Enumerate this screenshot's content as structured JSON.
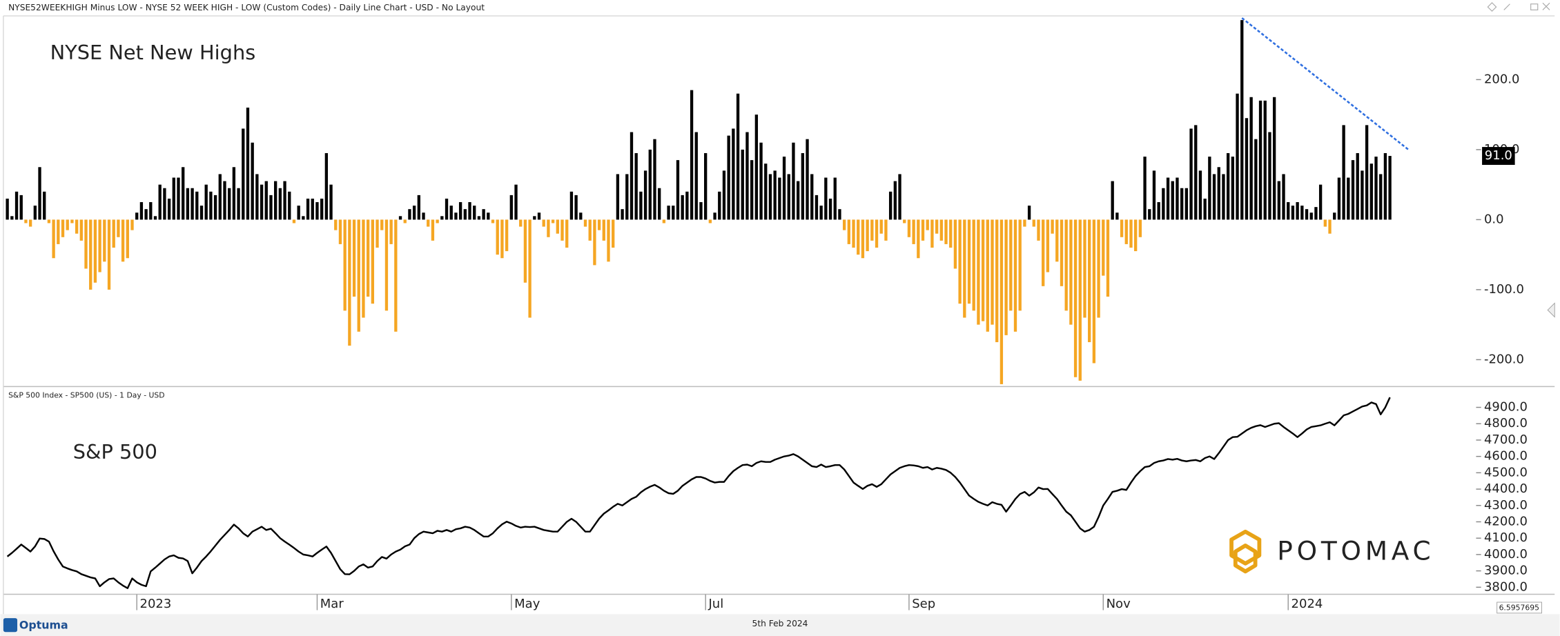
{
  "header": "NYSE52WEEKHIGH Minus LOW - NYSE 52 WEEK HIGH - LOW (Custom Codes) - Daily Line Chart - USD - No Layout",
  "chart_data": [
    {
      "type": "bar",
      "title": "NYSE Net New Highs",
      "values": [
        30,
        5,
        40,
        35,
        -5,
        -10,
        20,
        75,
        40,
        -5,
        -55,
        -35,
        -25,
        -15,
        -5,
        -20,
        -30,
        -70,
        -100,
        -90,
        -75,
        -60,
        -100,
        -40,
        -25,
        -60,
        -55,
        -15,
        10,
        25,
        15,
        25,
        5,
        50,
        45,
        30,
        60,
        60,
        75,
        45,
        45,
        40,
        20,
        50,
        40,
        35,
        65,
        55,
        45,
        75,
        45,
        130,
        160,
        110,
        65,
        50,
        55,
        35,
        55,
        45,
        55,
        40,
        -5,
        20,
        5,
        30,
        30,
        25,
        30,
        95,
        50,
        -15,
        -35,
        -130,
        -180,
        -110,
        -160,
        -140,
        -110,
        -120,
        -40,
        -15,
        -130,
        -35,
        -160,
        5,
        -5,
        15,
        20,
        35,
        10,
        -10,
        -30,
        -5,
        5,
        30,
        20,
        10,
        25,
        15,
        25,
        20,
        5,
        15,
        10,
        -5,
        -50,
        -55,
        -45,
        35,
        50,
        -10,
        -90,
        -140,
        5,
        10,
        -10,
        -25,
        -5,
        -20,
        -30,
        -40,
        40,
        35,
        10,
        -10,
        -30,
        -65,
        -15,
        -30,
        -60,
        -40,
        65,
        15,
        65,
        125,
        95,
        40,
        70,
        100,
        115,
        45,
        -5,
        20,
        20,
        85,
        35,
        40,
        185,
        125,
        25,
        95,
        -5,
        10,
        40,
        70,
        120,
        130,
        180,
        100,
        125,
        85,
        150,
        110,
        80,
        65,
        70,
        60,
        90,
        65,
        110,
        55,
        95,
        115,
        65,
        35,
        20,
        60,
        30,
        60,
        15,
        -15,
        -35,
        -40,
        -50,
        -55,
        -45,
        -30,
        -40,
        -20,
        -30,
        40,
        55,
        65,
        -5,
        -25,
        -35,
        -55,
        -30,
        -15,
        -40,
        -20,
        -30,
        -35,
        -40,
        -70,
        -120,
        -140,
        -120,
        -130,
        -150,
        -145,
        -160,
        -150,
        -175,
        -235,
        -165,
        -130,
        -160,
        -130,
        -10,
        20,
        -10,
        -30,
        -95,
        -75,
        -20,
        -60,
        -95,
        -130,
        -150,
        -225,
        -230,
        -140,
        -175,
        -205,
        -140,
        -80,
        -110,
        55,
        10,
        -25,
        -35,
        -40,
        -45,
        -25,
        90,
        15,
        70,
        25,
        45,
        60,
        55,
        60,
        45,
        45,
        130,
        135,
        70,
        30,
        90,
        65,
        75,
        65,
        95,
        90,
        180,
        285,
        145,
        175,
        115,
        170,
        170,
        125,
        175,
        55,
        65,
        25,
        20,
        25,
        20,
        15,
        10,
        18,
        50,
        -10,
        -20,
        10,
        60,
        135,
        60,
        85,
        95,
        70,
        135,
        80,
        90,
        65,
        95,
        91
      ],
      "positive_color": "#000000",
      "negative_color": "#f5a623",
      "ylim": [
        -237,
        291
      ],
      "yticks": [
        {
          "value": -200,
          "label": "-200.0"
        },
        {
          "value": -100,
          "label": "-100.0"
        },
        {
          "value": 0,
          "label": "0.0"
        },
        {
          "value": 100,
          "label": "100.0"
        },
        {
          "value": 200,
          "label": "200.0"
        }
      ],
      "last_value_label": "91.0",
      "trendline": {
        "x": [
          267,
          303
        ],
        "y": [
          288,
          100
        ],
        "color": "#2f6fe0"
      }
    },
    {
      "type": "line",
      "title": "S&P 500",
      "subtitle": "S&P 500 Index  - SP500 (US) - 1 Day - USD",
      "categories": [
        null,
        null,
        null,
        null,
        null,
        null,
        null,
        null,
        null,
        null,
        null,
        null,
        null,
        null,
        null,
        null,
        null,
        null,
        null,
        null,
        null,
        null,
        null,
        null,
        null,
        null,
        null,
        null,
        "2023",
        null,
        null,
        null,
        null,
        null,
        null,
        null,
        null,
        null,
        null,
        null,
        null,
        null,
        null,
        null,
        null,
        null,
        null,
        null,
        null,
        null,
        null,
        null,
        null,
        null,
        null,
        null,
        null,
        null,
        null,
        null,
        null,
        null,
        null,
        null,
        null,
        null,
        null,
        "Mar",
        null,
        null,
        null,
        null,
        null,
        null,
        null,
        null,
        null,
        null,
        null,
        null,
        null,
        null,
        null,
        null,
        null,
        null,
        null,
        null,
        null,
        null,
        null,
        null,
        null,
        null,
        null,
        null,
        null,
        null,
        null,
        null,
        null,
        null,
        null,
        null,
        null,
        null,
        null,
        null,
        null,
        "May",
        null,
        null,
        null,
        null,
        null,
        null,
        null,
        null,
        null,
        null,
        null,
        null,
        null,
        null,
        null,
        null,
        null,
        null,
        null,
        null,
        null,
        null,
        null,
        null,
        null,
        null,
        null,
        null,
        null,
        null,
        null,
        null,
        null,
        null,
        null,
        null,
        null,
        null,
        null,
        null,
        null,
        "Jul",
        null,
        null,
        null,
        null,
        null,
        null,
        null,
        null,
        null,
        null,
        null,
        null,
        null,
        null,
        null,
        null,
        null,
        null,
        null,
        null,
        null,
        null,
        null,
        null,
        null,
        null,
        null,
        null,
        null,
        null,
        null,
        null,
        null,
        null,
        null,
        null,
        null,
        null,
        null,
        null,
        null,
        null,
        null,
        "Sep",
        null,
        null,
        null,
        null,
        null,
        null,
        null,
        null,
        null,
        null,
        null,
        null,
        null,
        null,
        null,
        null,
        null,
        null,
        null,
        null,
        null,
        null,
        null,
        null,
        null,
        null,
        null,
        null,
        null,
        null,
        null,
        null,
        null,
        null,
        null,
        null,
        null,
        null,
        null,
        null,
        null,
        "Nov",
        null,
        null,
        null,
        null,
        null,
        null,
        null,
        null,
        null,
        null,
        null,
        null,
        null,
        null,
        null,
        null,
        null,
        null,
        null,
        null,
        null,
        null,
        null,
        null,
        null,
        null,
        null,
        null,
        null,
        null,
        null,
        null,
        null,
        null,
        null,
        null,
        null,
        null,
        null,
        "2024",
        null,
        null,
        null,
        null,
        null,
        null,
        null,
        null,
        null,
        null,
        null,
        null,
        null,
        null,
        null,
        null,
        null,
        null,
        null,
        null,
        null,
        null
      ],
      "values": [
        3988,
        4010,
        4035,
        4061,
        4040,
        4018,
        4050,
        4098,
        4095,
        4079,
        4020,
        3970,
        3927,
        3915,
        3905,
        3897,
        3880,
        3870,
        3860,
        3854,
        3806,
        3830,
        3850,
        3854,
        3830,
        3810,
        3794,
        3854,
        3830,
        3815,
        3806,
        3897,
        3920,
        3945,
        3970,
        3988,
        3995,
        3980,
        3976,
        3960,
        3885,
        3920,
        3960,
        3988,
        4020,
        4055,
        4090,
        4120,
        4150,
        4183,
        4160,
        4130,
        4110,
        4140,
        4155,
        4170,
        4150,
        4158,
        4130,
        4100,
        4079,
        4060,
        4040,
        4018,
        4000,
        3995,
        3988,
        4010,
        4030,
        4049,
        4010,
        3960,
        3910,
        3880,
        3879,
        3900,
        3927,
        3940,
        3920,
        3927,
        3960,
        3985,
        3975,
        4000,
        4018,
        4030,
        4050,
        4061,
        4100,
        4125,
        4140,
        4135,
        4130,
        4145,
        4140,
        4150,
        4140,
        4155,
        4160,
        4170,
        4165,
        4150,
        4130,
        4110,
        4110,
        4130,
        4160,
        4185,
        4201,
        4190,
        4175,
        4165,
        4170,
        4168,
        4170,
        4160,
        4150,
        4145,
        4140,
        4140,
        4170,
        4200,
        4219,
        4200,
        4170,
        4140,
        4140,
        4180,
        4220,
        4250,
        4270,
        4292,
        4310,
        4300,
        4320,
        4340,
        4353,
        4380,
        4400,
        4415,
        4426,
        4410,
        4390,
        4375,
        4371,
        4390,
        4420,
        4440,
        4460,
        4474,
        4474,
        4465,
        4450,
        4440,
        4444,
        4444,
        4480,
        4510,
        4530,
        4547,
        4550,
        4540,
        4560,
        4570,
        4566,
        4566,
        4580,
        4590,
        4600,
        4605,
        4614,
        4600,
        4580,
        4560,
        4540,
        4535,
        4550,
        4535,
        4540,
        4547,
        4547,
        4520,
        4480,
        4440,
        4420,
        4401,
        4420,
        4430,
        4414,
        4430,
        4460,
        4490,
        4510,
        4530,
        4540,
        4547,
        4545,
        4540,
        4530,
        4535,
        4520,
        4530,
        4525,
        4517,
        4500,
        4474,
        4440,
        4400,
        4360,
        4340,
        4322,
        4310,
        4300,
        4320,
        4310,
        4304,
        4262,
        4300,
        4340,
        4370,
        4383,
        4360,
        4380,
        4410,
        4400,
        4401,
        4370,
        4340,
        4300,
        4262,
        4240,
        4200,
        4160,
        4140,
        4150,
        4170,
        4230,
        4300,
        4340,
        4383,
        4390,
        4400,
        4395,
        4440,
        4480,
        4510,
        4535,
        4540,
        4560,
        4570,
        4575,
        4584,
        4580,
        4585,
        4575,
        4570,
        4575,
        4578,
        4570,
        4590,
        4600,
        4584,
        4620,
        4660,
        4700,
        4718,
        4720,
        4740,
        4760,
        4775,
        4785,
        4791,
        4780,
        4790,
        4800,
        4803,
        4780,
        4760,
        4740,
        4718,
        4740,
        4765,
        4780,
        4785,
        4790,
        4800,
        4809,
        4790,
        4820,
        4851,
        4860,
        4875,
        4890,
        4905,
        4912,
        4930,
        4920,
        4857,
        4900,
        4961
      ],
      "color": "#000000",
      "ylim": [
        3757,
        5021
      ],
      "yticks": [
        {
          "value": 3800,
          "label": "3800.0"
        },
        {
          "value": 3900,
          "label": "3900.0"
        },
        {
          "value": 4000,
          "label": "4000.0"
        },
        {
          "value": 4100,
          "label": "4100.0"
        },
        {
          "value": 4200,
          "label": "4200.0"
        },
        {
          "value": 4300,
          "label": "4300.0"
        },
        {
          "value": 4400,
          "label": "4400.0"
        },
        {
          "value": 4500,
          "label": "4500.0"
        },
        {
          "value": 4600,
          "label": "4600.0"
        },
        {
          "value": 4700,
          "label": "4700.0"
        },
        {
          "value": 4800,
          "label": "4800.0"
        },
        {
          "value": 4900,
          "label": "4900.0"
        }
      ]
    }
  ],
  "watermark": "POTOMAC",
  "footer": {
    "brand": "Optuma",
    "date": "5th Feb 2024",
    "scale": "6.5957695"
  }
}
